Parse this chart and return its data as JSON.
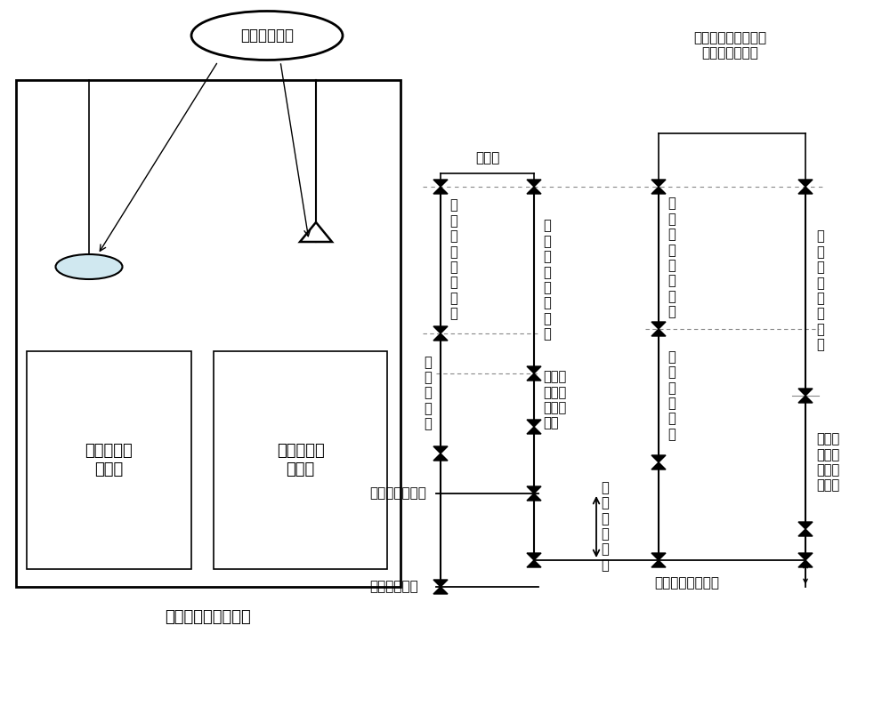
{
  "bg_color": "#ffffff",
  "text_color": "#000000",
  "line_color": "#000000",
  "satellite_label": "空间导航卫星",
  "box_main_label": "直发信号差分伪卫星",
  "box1_label": "伪卫星同步\n接收机",
  "box2_label": "伪卫星信号\n发射机",
  "zero_baseline_label": "零基线",
  "col1_label": "发\n射\n设\n备\n硬\n件\n延\n迟",
  "col2_label": "接\n收\n设\n备\n硬\n件\n延\n迟",
  "col3_label": "发\n射\n设\n备\n硬\n件\n延\n迟",
  "col4_label": "接\n收\n设\n备\n硬\n件\n延\n迟",
  "pseudo_clock_label": "伪\n卫\n星\n钟\n差",
  "receiver_pseudo_clock_label": "接收机\n相对伪\n卫星的\n钟差",
  "nav_clock_label": "导\n航\n卫\n星\n钟\n差",
  "receiver_nav_clock_label": "接收机\n相对导\n航卫星\n的钟差",
  "sys_time_offset_label": "系\n统\n时\n间\n偏\n差",
  "pseudo_sys_time_label": "伪卫星系统时间",
  "virtual_sys_time_label": "虚拟系统时间",
  "sat_nav_sys_time_label": "卫星导航系统时间",
  "top_right_label": "相对论、电离层、对\n流层、几何距离",
  "figsize": [
    10.0,
    7.94
  ]
}
